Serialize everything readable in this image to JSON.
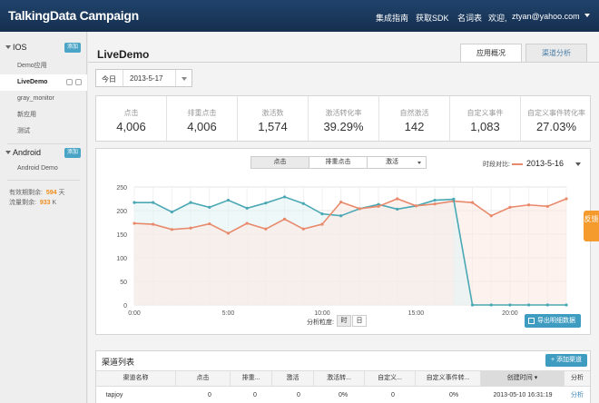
{
  "app": {
    "logo": "TalkingData Campaign"
  },
  "topnav": {
    "guide": "集成指南",
    "sdk": "获取SDK",
    "glossary": "名词表",
    "welcome": "欢迎,",
    "user": "ztyan@yahoo.com"
  },
  "sidebar": {
    "ios": {
      "name": "IOS",
      "add": "添加",
      "items": [
        "Demo应用",
        "LiveDemo",
        "gray_monitor",
        "新应用",
        "测试"
      ]
    },
    "android": {
      "name": "Android",
      "add": "添加",
      "items": [
        "Android Demo"
      ]
    },
    "quota": {
      "days_label": "有效期剩余:",
      "days_value": "594",
      "days_unit": "天",
      "traffic_label": "流量剩余:",
      "traffic_value": "933",
      "traffic_unit": "K"
    }
  },
  "main": {
    "title": "LiveDemo",
    "tabs": [
      "应用概况",
      "渠道分析"
    ],
    "date": {
      "label": "今日",
      "value": "2013-5-17"
    },
    "stats": [
      {
        "label": "点击",
        "value": "4,006"
      },
      {
        "label": "排重点击",
        "value": "4,006"
      },
      {
        "label": "激活数",
        "value": "1,574"
      },
      {
        "label": "激活转化率",
        "value": "39.29%"
      },
      {
        "label": "自然激活",
        "value": "142"
      },
      {
        "label": "自定义事件",
        "value": "1,083"
      },
      {
        "label": "自定义事件转化率",
        "value": "27.03%"
      }
    ],
    "chart_controls": {
      "metrics": [
        "点击",
        "排重点击",
        "激活"
      ],
      "compare_label": "时段对比:",
      "compare_date": "2013-5-16",
      "granularity_label": "分析粒度:",
      "granularity": [
        "时",
        "日"
      ],
      "export": "导出明细数据"
    },
    "channels": {
      "title": "渠道列表",
      "add": "添加渠道",
      "columns": [
        "渠道名称",
        "点击",
        "排重...",
        "激活",
        "激活转...",
        "自定义...",
        "自定义事件转...",
        "创建时间",
        "分析"
      ],
      "rows": [
        {
          "name": "tapjoy",
          "clicks": "0",
          "dedup": "0",
          "act": "0",
          "actrate": "0%",
          "custom": "0",
          "customrate": "0%",
          "created": "2013-05-10 16:31:19",
          "analyze": "分析"
        }
      ]
    }
  },
  "feedback": {
    "text": "反馈"
  },
  "colors": {
    "today": "#4aa8b4",
    "compare": "#e8896b",
    "accent": "#3e9cc0",
    "topbar": "#1a3a5e"
  },
  "chart_data": {
    "type": "line",
    "x": [
      0,
      1,
      2,
      3,
      4,
      5,
      6,
      7,
      8,
      9,
      10,
      11,
      12,
      13,
      14,
      15,
      16,
      17,
      18,
      19,
      20,
      21,
      22,
      23
    ],
    "xticks": [
      "0:00",
      "5:00",
      "10:00",
      "15:00",
      "20:00"
    ],
    "yticks": [
      0,
      50,
      100,
      150,
      200,
      250
    ],
    "ylim": [
      0,
      250
    ],
    "grid": true,
    "series": [
      {
        "values": [
          217,
          217,
          197,
          217,
          207,
          222,
          205,
          216,
          229,
          215,
          193,
          189,
          204,
          213,
          203,
          210,
          222,
          224,
          null,
          null,
          null,
          null,
          null,
          null
        ]
      },
      {
        "values": [
          173,
          171,
          160,
          163,
          172,
          152,
          173,
          161,
          182,
          161,
          171,
          218,
          204,
          209,
          225,
          210,
          214,
          220,
          217,
          189,
          207,
          212,
          209,
          225
        ]
      },
      {
        "values": [
          null,
          null,
          null,
          null,
          null,
          null,
          null,
          null,
          null,
          null,
          null,
          null,
          null,
          null,
          null,
          null,
          null,
          224,
          0,
          0,
          0,
          0,
          0,
          0
        ]
      }
    ]
  }
}
